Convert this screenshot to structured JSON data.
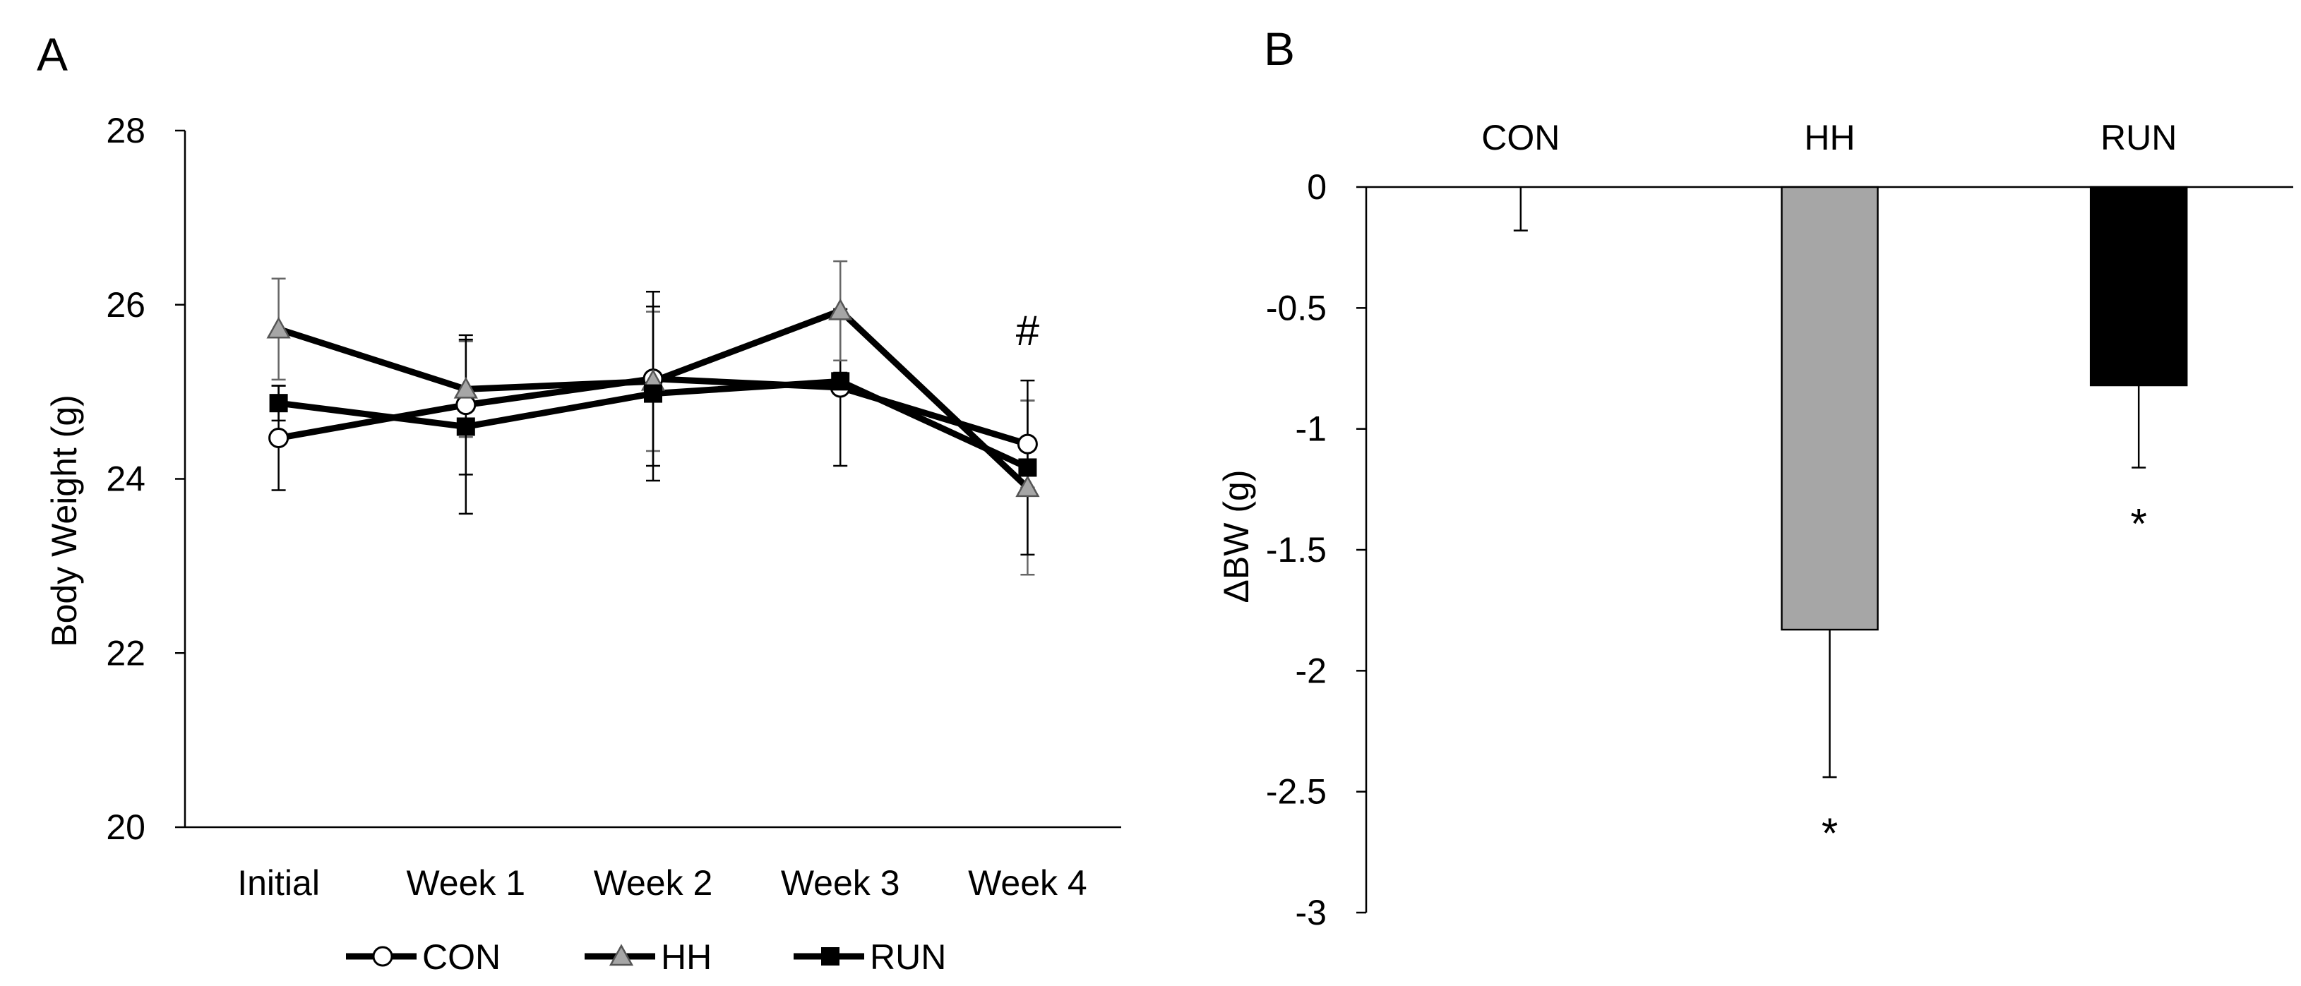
{
  "chart_data": [
    {
      "panel": "A",
      "type": "line",
      "title": "",
      "xlabel": "",
      "ylabel": "Body Weight (g)",
      "categories": [
        "Initial",
        "Week 1",
        "Week 2",
        "Week 3",
        "Week 4"
      ],
      "ylim": [
        20,
        28
      ],
      "yticks": [
        20,
        22,
        24,
        26,
        28
      ],
      "grid": false,
      "series": [
        {
          "name": "CON",
          "marker": "circle",
          "marker_fill": "#ffffff",
          "values": [
            24.47,
            24.85,
            25.15,
            25.05,
            24.4
          ],
          "errors": [
            0.6,
            0.8,
            1.0,
            0.9,
            0.5
          ]
        },
        {
          "name": "HH",
          "marker": "triangle",
          "marker_fill": "#a6a6a6",
          "values": [
            25.72,
            25.03,
            25.12,
            25.93,
            23.9
          ],
          "errors": [
            0.58,
            0.55,
            0.8,
            0.57,
            1.0
          ]
        },
        {
          "name": "RUN",
          "marker": "square",
          "marker_fill": "#000000",
          "values": [
            24.87,
            24.6,
            24.98,
            25.12,
            24.13
          ],
          "errors": [
            0.2,
            1.0,
            1.0,
            0.1,
            1.0
          ]
        }
      ],
      "annotations": [
        {
          "category": "Week 4",
          "text": "#",
          "value": 25.7
        }
      ],
      "legend": {
        "position": "bottom",
        "entries": [
          "CON",
          "HH",
          "RUN"
        ]
      }
    },
    {
      "panel": "B",
      "type": "bar",
      "title": "",
      "xlabel": "",
      "ylabel": "ΔBW (g)",
      "categories": [
        "CON",
        "HH",
        "RUN"
      ],
      "values": [
        0.0,
        -1.83,
        -0.82
      ],
      "errors": [
        0.18,
        0.61,
        0.34
      ],
      "colors": [
        "#ffffff",
        "#a6a6a6",
        "#000000"
      ],
      "ylim": [
        -3,
        0
      ],
      "yticks": [
        0,
        -0.5,
        -1,
        -1.5,
        -2,
        -2.5,
        -3
      ],
      "ytick_labels": [
        "0",
        "-0.5",
        "-1",
        "-1.5",
        "-2",
        "-2.5",
        "-3"
      ],
      "grid": false,
      "annotations": [
        {
          "category": "HH",
          "text": "*"
        },
        {
          "category": "RUN",
          "text": "*"
        }
      ]
    }
  ]
}
